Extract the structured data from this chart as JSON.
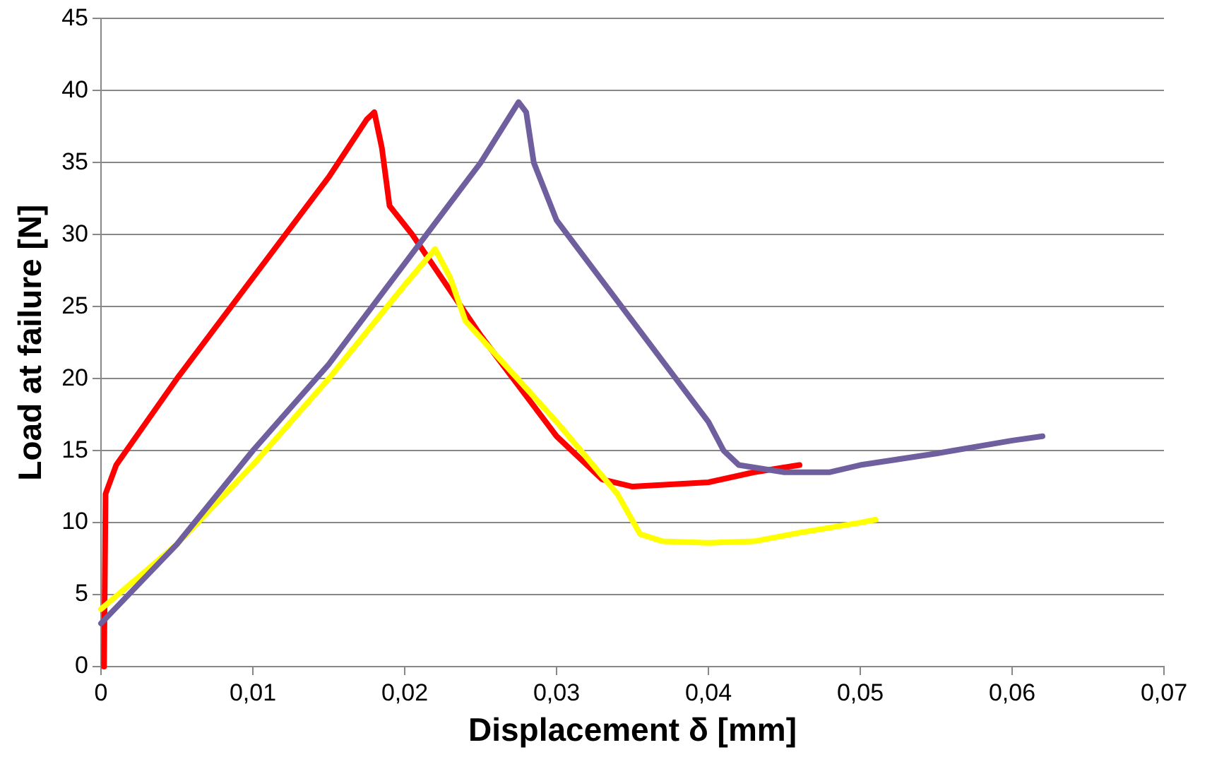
{
  "chart_data": {
    "type": "line",
    "xlabel": "Displacement δ [mm]",
    "ylabel": "Load at failure [N]",
    "xlim": [
      0,
      0.07
    ],
    "ylim": [
      0,
      45
    ],
    "xticks": [
      0,
      {
        "value": 0.01,
        "label": "0,01"
      },
      {
        "value": 0.02,
        "label": "0,02"
      },
      {
        "value": 0.03,
        "label": "0,03"
      },
      {
        "value": 0.04,
        "label": "0,04"
      },
      {
        "value": 0.05,
        "label": "0,05"
      },
      {
        "value": 0.06,
        "label": "0,06"
      },
      {
        "value": 0.07,
        "label": "0,07"
      }
    ],
    "yticks": [
      0,
      5,
      10,
      15,
      20,
      25,
      30,
      35,
      40,
      45
    ],
    "grid": "y",
    "legend": false,
    "marker": "none",
    "line_style": "solid",
    "series": [
      {
        "color": "#705f9f",
        "x": [
          0,
          0.005,
          0.01,
          0.015,
          0.02,
          0.025,
          0.0275,
          0.028,
          0.0285,
          0.03,
          0.035,
          0.04,
          0.041,
          0.042,
          0.045,
          0.048,
          0.05,
          0.055,
          0.06,
          0.062
        ],
        "values": [
          3,
          8.5,
          15,
          21,
          28,
          35,
          39.2,
          38.5,
          35,
          31,
          24,
          17,
          15,
          14,
          13.5,
          13.5,
          14,
          14.8,
          15.7,
          16
        ]
      },
      {
        "color": "#ffff00",
        "x": [
          0,
          0.005,
          0.01,
          0.015,
          0.02,
          0.022,
          0.023,
          0.024,
          0.03,
          0.034,
          0.0355,
          0.037,
          0.04,
          0.043,
          0.046,
          0.05,
          0.051
        ],
        "values": [
          4,
          8.5,
          14,
          20,
          26.5,
          29,
          27,
          24,
          17,
          12,
          9.2,
          8.7,
          8.6,
          8.7,
          9.3,
          10,
          10.2
        ]
      },
      {
        "color": "#ff0000",
        "x": [
          0.0002,
          0.0003,
          0.001,
          0.005,
          0.01,
          0.015,
          0.0175,
          0.018,
          0.0185,
          0.019,
          0.0205,
          0.025,
          0.03,
          0.033,
          0.035,
          0.04,
          0.043,
          0.046
        ],
        "values": [
          0,
          12,
          14,
          20,
          27,
          34,
          38,
          38.5,
          36,
          32,
          30,
          23,
          16,
          13,
          12.5,
          12.8,
          13.5,
          14
        ]
      }
    ]
  }
}
